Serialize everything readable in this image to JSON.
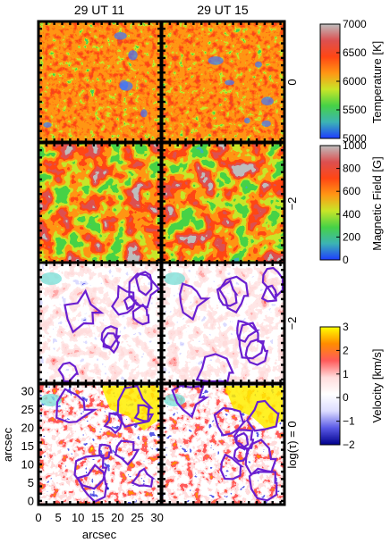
{
  "chart_data": {
    "type": "heatmap",
    "column_titles": [
      "29 UT 11",
      "29 UT 15"
    ],
    "row_labels": [
      "0",
      "−2",
      "−2",
      "log(τ) = 0"
    ],
    "x_axis": {
      "label": "arcsec",
      "ticks": [
        "0",
        "5",
        "10",
        "15",
        "20",
        "25",
        "30"
      ],
      "range": [
        0,
        31
      ]
    },
    "y_axis": {
      "label": "arcsec",
      "ticks": [
        "0",
        "5",
        "10",
        "15",
        "20",
        "25",
        "30"
      ],
      "range": [
        -1,
        32
      ]
    },
    "colorbars": [
      {
        "label": "Temperature [K]",
        "ticks": [
          "5000",
          "5500",
          "6000",
          "6500",
          "7000"
        ],
        "range": [
          5000,
          7000
        ],
        "colors": [
          "#1e3cff",
          "#3cb4b4",
          "#46d246",
          "#c8e628",
          "#ff9614",
          "#ff4614",
          "#dc5050",
          "#bebebe"
        ]
      },
      {
        "label": "Magnetic Field [G]",
        "ticks": [
          "0",
          "200",
          "400",
          "600",
          "800",
          "1000"
        ],
        "range": [
          0,
          1000
        ],
        "colors": [
          "#1e3cff",
          "#3cb4b4",
          "#46d246",
          "#c8e628",
          "#ff9614",
          "#ff4614",
          "#dc5050",
          "#bebebe"
        ]
      },
      {
        "label": "Velocity [km/s]",
        "ticks": [
          "−2",
          "−1",
          "0",
          "1",
          "2",
          "3"
        ],
        "range": [
          -2,
          3
        ],
        "colors": [
          "#00008c",
          "#5a5ae6",
          "#dcdcff",
          "#ffffff",
          "#ffdcdc",
          "#ff5a5a",
          "#ff8c00",
          "#ffff00"
        ]
      }
    ],
    "panels": [
      {
        "row": 0,
        "col": 0,
        "quantity": "temperature"
      },
      {
        "row": 0,
        "col": 1,
        "quantity": "temperature"
      },
      {
        "row": 1,
        "col": 0,
        "quantity": "magnetic field"
      },
      {
        "row": 1,
        "col": 1,
        "quantity": "magnetic field"
      },
      {
        "row": 2,
        "col": 0,
        "quantity": "velocity",
        "contours": true
      },
      {
        "row": 2,
        "col": 1,
        "quantity": "velocity",
        "contours": true
      },
      {
        "row": 3,
        "col": 0,
        "quantity": "velocity",
        "contours": true
      },
      {
        "row": 3,
        "col": 1,
        "quantity": "velocity",
        "contours": true
      }
    ],
    "contour_color": "#6a1fd0"
  }
}
